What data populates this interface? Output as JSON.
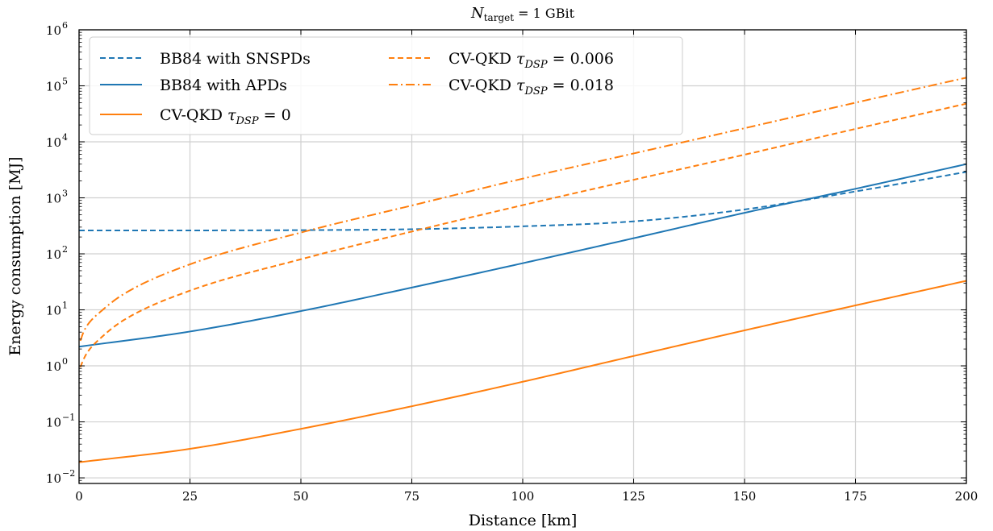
{
  "chart_data": {
    "type": "line",
    "title": "N_target = 1 GBit",
    "title_main": "N",
    "title_sub": "target",
    "title_rest": " = 1 GBit",
    "xlabel": "Distance [km]",
    "ylabel": "Energy consumption [MJ]",
    "xlim": [
      0,
      200
    ],
    "ylim_log10": [
      -2.1,
      6
    ],
    "yscale": "log",
    "grid": true,
    "legend_placement": "top-left",
    "x_ticks": [
      0,
      25,
      50,
      75,
      100,
      125,
      150,
      175,
      200
    ],
    "x_tick_labels": [
      "0",
      "25",
      "50",
      "75",
      "100",
      "125",
      "150",
      "175",
      "200"
    ],
    "y_ticks_log10": [
      -2,
      -1,
      0,
      1,
      2,
      3,
      4,
      5,
      6
    ],
    "y_tick_labels": [
      "10",
      "10",
      "10",
      "10",
      "10",
      "10",
      "10",
      "10",
      "10"
    ],
    "y_tick_exponents": [
      "−2",
      "−1",
      "0",
      "1",
      "2",
      "3",
      "4",
      "5",
      "6"
    ],
    "colors": {
      "blue": "#1f77b4",
      "orange": "#ff7f0e",
      "grid": "#d0d0d0"
    },
    "series": [
      {
        "name": "BB84 with SNSPDs",
        "label_main": "BB84 with SNSPDs",
        "color": "#1f77b4",
        "dash": "dashed",
        "x": [
          0,
          25,
          50,
          75,
          100,
          125,
          150,
          175,
          200
        ],
        "y": [
          262,
          262,
          265,
          275,
          310,
          380,
          620,
          1300,
          2900
        ]
      },
      {
        "name": "BB84 with APDs",
        "label_main": "BB84 with APDs",
        "color": "#1f77b4",
        "dash": "solid",
        "x": [
          0,
          25,
          50,
          75,
          100,
          125,
          150,
          175,
          200
        ],
        "y": [
          2.2,
          4.1,
          9.5,
          25,
          68,
          190,
          540,
          1450,
          4000
        ]
      },
      {
        "name": "CV-QKD τ_DSP = 0",
        "label_main": "CV-QKD ",
        "label_tau": "τ",
        "label_sub": "DSP",
        "label_rest": " = 0",
        "color": "#ff7f0e",
        "dash": "solid",
        "x": [
          0,
          25,
          50,
          75,
          100,
          125,
          150,
          175,
          200
        ],
        "y": [
          0.019,
          0.033,
          0.075,
          0.19,
          0.52,
          1.5,
          4.3,
          12,
          33
        ]
      },
      {
        "name": "CV-QKD τ_DSP = 0.006",
        "label_main": "CV-QKD ",
        "label_tau": "τ",
        "label_sub": "DSP",
        "label_rest": " = 0.006",
        "color": "#ff7f0e",
        "dash": "dashed",
        "x": [
          0.3,
          1,
          2,
          5,
          10,
          25,
          50,
          75,
          100,
          125,
          150,
          175,
          200
        ],
        "y": [
          0.95,
          1.3,
          1.8,
          3.2,
          6.5,
          22,
          80,
          250,
          740,
          2100,
          5900,
          17000,
          48000
        ]
      },
      {
        "name": "CV-QKD τ_DSP = 0.018",
        "label_main": "CV-QKD ",
        "label_tau": "τ",
        "label_sub": "DSP",
        "label_rest": " = 0.018",
        "color": "#ff7f0e",
        "dash": "dashdot",
        "x": [
          0.3,
          1,
          2,
          5,
          10,
          25,
          50,
          75,
          100,
          125,
          150,
          175,
          200
        ],
        "y": [
          2.8,
          4,
          5.5,
          9.5,
          19,
          65,
          240,
          730,
          2200,
          6200,
          17500,
          50000,
          140000
        ]
      }
    ]
  }
}
